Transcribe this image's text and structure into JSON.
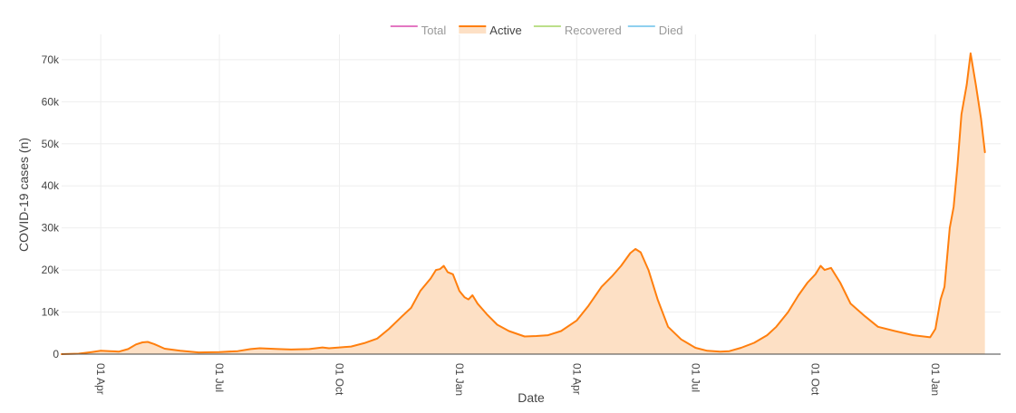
{
  "chart_data": {
    "type": "area",
    "title": "",
    "xlabel": "Date",
    "ylabel": "COVID-19 cases (n)",
    "grid": true,
    "legend_position": "top-center",
    "x_range": [
      "2020-03-02",
      "2022-02-20"
    ],
    "ylim": [
      0,
      76000
    ],
    "x_ticks": [
      {
        "date": "2020-04-01",
        "label": "01 Apr"
      },
      {
        "date": "2020-07-01",
        "label": "01 Jul"
      },
      {
        "date": "2020-10-01",
        "label": "01 Oct"
      },
      {
        "date": "2021-01-01",
        "label": "01 Jan"
      },
      {
        "date": "2021-04-01",
        "label": "01 Apr"
      },
      {
        "date": "2021-07-01",
        "label": "01 Jul"
      },
      {
        "date": "2021-10-01",
        "label": "01 Oct"
      },
      {
        "date": "2022-01-01",
        "label": "01 Jan"
      }
    ],
    "y_ticks": [
      {
        "value": 0,
        "label": "0"
      },
      {
        "value": 10000,
        "label": "10k"
      },
      {
        "value": 20000,
        "label": "20k"
      },
      {
        "value": 30000,
        "label": "30k"
      },
      {
        "value": 40000,
        "label": "40k"
      },
      {
        "value": 50000,
        "label": "50k"
      },
      {
        "value": 60000,
        "label": "60k"
      },
      {
        "value": 70000,
        "label": "70k"
      }
    ],
    "legend": [
      {
        "name": "Total",
        "color": "#e377c2",
        "active": false
      },
      {
        "name": "Active",
        "color": "#ff7f0e",
        "active": true
      },
      {
        "name": "Recovered",
        "color": "#bcdf8a",
        "active": false
      },
      {
        "name": "Died",
        "color": "#8fd0ef",
        "active": false
      }
    ],
    "series": [
      {
        "name": "Active",
        "color": "#ff7f0e",
        "fill_color": "#fde0c5",
        "points": [
          [
            "2020-03-02",
            0
          ],
          [
            "2020-03-15",
            100
          ],
          [
            "2020-03-25",
            500
          ],
          [
            "2020-04-01",
            800
          ],
          [
            "2020-04-08",
            700
          ],
          [
            "2020-04-15",
            600
          ],
          [
            "2020-04-22",
            1200
          ],
          [
            "2020-04-28",
            2300
          ],
          [
            "2020-05-03",
            2800
          ],
          [
            "2020-05-07",
            2900
          ],
          [
            "2020-05-12",
            2400
          ],
          [
            "2020-05-20",
            1300
          ],
          [
            "2020-06-01",
            800
          ],
          [
            "2020-06-15",
            400
          ],
          [
            "2020-07-01",
            500
          ],
          [
            "2020-07-15",
            700
          ],
          [
            "2020-07-25",
            1200
          ],
          [
            "2020-08-01",
            1400
          ],
          [
            "2020-08-15",
            1200
          ],
          [
            "2020-08-25",
            1100
          ],
          [
            "2020-09-08",
            1200
          ],
          [
            "2020-09-18",
            1600
          ],
          [
            "2020-09-23",
            1400
          ],
          [
            "2020-10-01",
            1600
          ],
          [
            "2020-10-10",
            1800
          ],
          [
            "2020-10-20",
            2600
          ],
          [
            "2020-10-30",
            3700
          ],
          [
            "2020-11-08",
            6000
          ],
          [
            "2020-11-18",
            9000
          ],
          [
            "2020-11-25",
            11000
          ],
          [
            "2020-12-02",
            15000
          ],
          [
            "2020-12-10",
            18000
          ],
          [
            "2020-12-14",
            20000
          ],
          [
            "2020-12-17",
            20200
          ],
          [
            "2020-12-20",
            21000
          ],
          [
            "2020-12-23",
            19500
          ],
          [
            "2020-12-27",
            19000
          ],
          [
            "2021-01-01",
            15000
          ],
          [
            "2021-01-05",
            13500
          ],
          [
            "2021-01-08",
            13000
          ],
          [
            "2021-01-11",
            14000
          ],
          [
            "2021-01-15",
            12000
          ],
          [
            "2021-01-22",
            9500
          ],
          [
            "2021-01-30",
            7000
          ],
          [
            "2021-02-08",
            5500
          ],
          [
            "2021-02-20",
            4200
          ],
          [
            "2021-03-01",
            4300
          ],
          [
            "2021-03-10",
            4500
          ],
          [
            "2021-03-20",
            5500
          ],
          [
            "2021-04-01",
            8000
          ],
          [
            "2021-04-10",
            11500
          ],
          [
            "2021-04-20",
            16000
          ],
          [
            "2021-04-28",
            18500
          ],
          [
            "2021-05-05",
            21000
          ],
          [
            "2021-05-12",
            24000
          ],
          [
            "2021-05-16",
            25000
          ],
          [
            "2021-05-20",
            24200
          ],
          [
            "2021-05-26",
            20000
          ],
          [
            "2021-06-02",
            13000
          ],
          [
            "2021-06-10",
            6500
          ],
          [
            "2021-06-20",
            3500
          ],
          [
            "2021-07-01",
            1500
          ],
          [
            "2021-07-10",
            800
          ],
          [
            "2021-07-20",
            600
          ],
          [
            "2021-07-27",
            700
          ],
          [
            "2021-08-05",
            1500
          ],
          [
            "2021-08-15",
            2700
          ],
          [
            "2021-08-25",
            4500
          ],
          [
            "2021-09-01",
            6500
          ],
          [
            "2021-09-10",
            10000
          ],
          [
            "2021-09-18",
            14000
          ],
          [
            "2021-09-25",
            17000
          ],
          [
            "2021-10-01",
            19000
          ],
          [
            "2021-10-05",
            21000
          ],
          [
            "2021-10-08",
            20000
          ],
          [
            "2021-10-13",
            20500
          ],
          [
            "2021-10-20",
            17000
          ],
          [
            "2021-10-28",
            12000
          ],
          [
            "2021-11-08",
            9000
          ],
          [
            "2021-11-18",
            6500
          ],
          [
            "2021-12-01",
            5500
          ],
          [
            "2021-12-15",
            4500
          ],
          [
            "2021-12-28",
            4000
          ],
          [
            "2022-01-01",
            6000
          ],
          [
            "2022-01-05",
            13000
          ],
          [
            "2022-01-08",
            16000
          ],
          [
            "2022-01-12",
            30000
          ],
          [
            "2022-01-15",
            35000
          ],
          [
            "2022-01-18",
            45000
          ],
          [
            "2022-01-21",
            57000
          ],
          [
            "2022-01-25",
            64000
          ],
          [
            "2022-01-28",
            71500
          ],
          [
            "2022-02-01",
            64000
          ],
          [
            "2022-02-05",
            56000
          ],
          [
            "2022-02-08",
            48000
          ]
        ]
      }
    ]
  }
}
